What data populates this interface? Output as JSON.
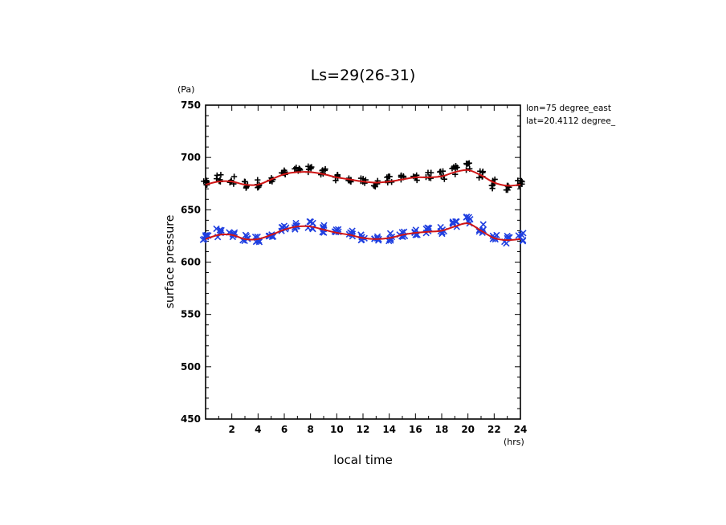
{
  "chart_data": {
    "type": "scatter",
    "title": "Ls=29(26-31)",
    "xlabel": "local time",
    "xunit": "(hrs)",
    "ylabel": "surface pressure",
    "yunit": "(Pa)",
    "annotations": [
      "lon=75 degree_east",
      "lat=20.4112 degree_"
    ],
    "xlim": [
      0,
      24
    ],
    "ylim": [
      450,
      750
    ],
    "xticks": [
      2,
      4,
      6,
      8,
      10,
      12,
      14,
      16,
      18,
      20,
      22,
      24
    ],
    "yticks": [
      450,
      500,
      550,
      600,
      650,
      700,
      750
    ],
    "grid": false,
    "x": [
      0,
      1,
      2,
      3,
      4,
      5,
      6,
      7,
      8,
      9,
      10,
      11,
      12,
      13,
      14,
      15,
      16,
      17,
      18,
      19,
      20,
      21,
      22,
      23,
      24
    ],
    "series": [
      {
        "marker": "plus",
        "color": "#000000",
        "values": [
          675,
          680,
          678,
          674,
          675,
          679,
          685,
          688,
          688,
          685,
          681,
          679,
          677,
          676,
          678,
          681,
          682,
          682,
          683,
          688,
          691,
          684,
          675,
          672,
          675
        ],
        "spread": [
          3,
          5,
          5,
          4,
          4,
          2,
          3,
          4,
          4,
          4,
          3,
          3,
          4,
          4,
          4,
          3,
          4,
          4,
          4,
          5,
          4,
          4,
          5,
          4,
          3
        ]
      },
      {
        "marker": "x",
        "color": "#1f3fe0",
        "values": [
          624,
          628,
          627,
          623,
          622,
          626,
          632,
          635,
          635,
          632,
          629,
          627,
          624,
          623,
          624,
          627,
          629,
          630,
          631,
          636,
          640,
          632,
          624,
          621,
          624
        ],
        "spread": [
          4,
          4,
          4,
          3,
          3,
          2,
          3,
          4,
          4,
          4,
          3,
          3,
          3,
          4,
          4,
          3,
          3,
          3,
          4,
          4,
          4,
          4,
          4,
          4,
          4
        ]
      }
    ],
    "fit_lines": [
      {
        "color": "#d01515",
        "values": [
          674,
          677,
          677,
          674,
          674,
          679,
          684,
          686,
          686,
          684,
          681,
          679,
          677,
          676,
          677,
          679,
          681,
          681,
          682,
          686,
          688,
          683,
          676,
          673,
          674
        ]
      },
      {
        "color": "#d01515",
        "values": [
          622,
          626,
          626,
          622,
          622,
          626,
          631,
          634,
          634,
          631,
          628,
          626,
          623,
          622,
          623,
          626,
          628,
          629,
          630,
          634,
          637,
          630,
          623,
          621,
          622
        ]
      }
    ]
  }
}
